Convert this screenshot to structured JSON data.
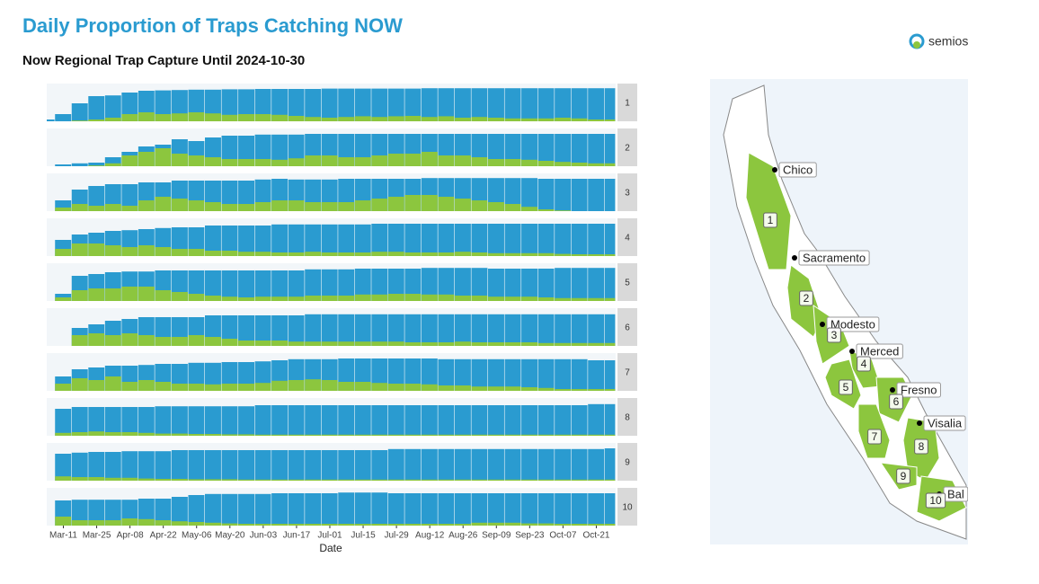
{
  "chart_data": {
    "type": "bar",
    "title": "Daily Proportion of Traps Catching NOW",
    "subtitle": "Now Regional Trap Capture Until 2024-10-30",
    "x_label": "Date",
    "ylim": [
      0,
      100
    ],
    "colors": [
      "#2a9bd0",
      "#8cc63e"
    ],
    "categories": [
      null,
      "Mar-11",
      null,
      "Mar-25",
      null,
      "Apr-08",
      null,
      "Apr-22",
      null,
      "May-06",
      null,
      "May-20",
      null,
      "Jun-03",
      null,
      "Jun-17",
      null,
      "Jul-01",
      null,
      "Jul-15",
      null,
      "Jul-29",
      null,
      "Aug-12",
      null,
      "Aug-26",
      null,
      "Sep-09",
      null,
      "Sep-23",
      null,
      "Oct-07",
      null,
      "Oct-21",
      null
    ],
    "facets": [
      {
        "label": "1",
        "series": [
          {
            "color": "#2a9bd0",
            "values": [
              5,
              20,
              50,
              70,
              72,
              80,
              85,
              86,
              87,
              88,
              88,
              89,
              89,
              90,
              90,
              90,
              90,
              91,
              91,
              91,
              91,
              91,
              91,
              92,
              92,
              92,
              92,
              92,
              92,
              92,
              92,
              92,
              92,
              92,
              92
            ]
          },
          {
            "color": "#8cc63e",
            "values": [
              0,
              0,
              2,
              5,
              10,
              20,
              25,
              20,
              22,
              25,
              22,
              18,
              20,
              20,
              18,
              15,
              12,
              10,
              12,
              14,
              12,
              14,
              15,
              12,
              14,
              10,
              12,
              10,
              8,
              8,
              8,
              10,
              8,
              5,
              5
            ]
          }
        ]
      },
      {
        "label": "2",
        "series": [
          {
            "color": "#2a9bd0",
            "values": [
              0,
              5,
              8,
              10,
              25,
              40,
              55,
              60,
              75,
              70,
              80,
              85,
              85,
              88,
              88,
              88,
              90,
              90,
              90,
              90,
              90,
              90,
              90,
              90,
              90,
              90,
              90,
              90,
              90,
              90,
              90,
              90,
              90,
              90,
              90
            ]
          },
          {
            "color": "#8cc63e",
            "values": [
              0,
              0,
              0,
              2,
              8,
              30,
              40,
              50,
              35,
              30,
              25,
              20,
              20,
              20,
              18,
              22,
              30,
              30,
              25,
              25,
              30,
              35,
              35,
              40,
              30,
              30,
              25,
              20,
              20,
              18,
              15,
              12,
              10,
              8,
              8
            ]
          }
        ]
      },
      {
        "label": "3",
        "series": [
          {
            "color": "#2a9bd0",
            "values": [
              0,
              30,
              60,
              70,
              75,
              75,
              80,
              80,
              85,
              85,
              85,
              85,
              85,
              88,
              90,
              88,
              88,
              88,
              90,
              90,
              90,
              90,
              90,
              92,
              92,
              92,
              92,
              92,
              92,
              92,
              90,
              90,
              90,
              90,
              90
            ]
          },
          {
            "color": "#8cc63e",
            "values": [
              0,
              10,
              20,
              15,
              20,
              15,
              30,
              40,
              35,
              30,
              25,
              20,
              20,
              25,
              30,
              30,
              25,
              25,
              25,
              30,
              35,
              40,
              45,
              45,
              40,
              35,
              30,
              25,
              20,
              12,
              5,
              2,
              0,
              0,
              0
            ]
          }
        ]
      },
      {
        "label": "4",
        "series": [
          {
            "color": "#2a9bd0",
            "values": [
              0,
              45,
              60,
              65,
              70,
              72,
              75,
              78,
              80,
              80,
              85,
              85,
              85,
              85,
              88,
              88,
              88,
              88,
              88,
              88,
              90,
              90,
              90,
              90,
              90,
              90,
              90,
              90,
              90,
              90,
              90,
              90,
              90,
              90,
              90
            ]
          },
          {
            "color": "#8cc63e",
            "values": [
              0,
              20,
              35,
              35,
              30,
              25,
              30,
              25,
              20,
              20,
              15,
              15,
              12,
              12,
              10,
              10,
              12,
              10,
              10,
              10,
              12,
              12,
              10,
              10,
              10,
              12,
              10,
              8,
              8,
              8,
              8,
              6,
              5,
              5,
              5
            ]
          }
        ]
      },
      {
        "label": "5",
        "series": [
          {
            "color": "#2a9bd0",
            "values": [
              0,
              20,
              70,
              75,
              80,
              82,
              82,
              85,
              85,
              85,
              85,
              85,
              85,
              85,
              85,
              85,
              88,
              88,
              88,
              90,
              90,
              90,
              90,
              92,
              92,
              92,
              92,
              90,
              90,
              90,
              90,
              92,
              92,
              92,
              92
            ]
          },
          {
            "color": "#8cc63e",
            "values": [
              0,
              10,
              30,
              35,
              35,
              40,
              40,
              30,
              25,
              20,
              15,
              12,
              10,
              12,
              12,
              12,
              15,
              15,
              15,
              18,
              18,
              20,
              20,
              18,
              18,
              15,
              15,
              12,
              12,
              12,
              10,
              8,
              8,
              8,
              8
            ]
          }
        ]
      },
      {
        "label": "6",
        "series": [
          {
            "color": "#2a9bd0",
            "values": [
              0,
              0,
              50,
              60,
              70,
              75,
              80,
              80,
              80,
              80,
              85,
              85,
              85,
              85,
              85,
              85,
              88,
              88,
              88,
              88,
              88,
              88,
              88,
              88,
              88,
              88,
              88,
              88,
              88,
              88,
              88,
              88,
              88,
              88,
              88
            ]
          },
          {
            "color": "#8cc63e",
            "values": [
              0,
              0,
              30,
              35,
              30,
              35,
              30,
              25,
              25,
              30,
              25,
              20,
              15,
              15,
              15,
              12,
              12,
              12,
              12,
              12,
              12,
              12,
              10,
              10,
              10,
              12,
              10,
              10,
              10,
              10,
              8,
              8,
              8,
              8,
              8
            ]
          }
        ]
      },
      {
        "label": "7",
        "series": [
          {
            "color": "#2a9bd0",
            "values": [
              0,
              40,
              60,
              65,
              70,
              70,
              72,
              75,
              75,
              78,
              78,
              80,
              80,
              82,
              85,
              88,
              88,
              88,
              90,
              90,
              90,
              90,
              90,
              90,
              88,
              88,
              88,
              88,
              88,
              88,
              88,
              88,
              88,
              85,
              85
            ]
          },
          {
            "color": "#8cc63e",
            "values": [
              0,
              20,
              35,
              30,
              40,
              25,
              30,
              25,
              20,
              20,
              18,
              20,
              20,
              22,
              28,
              30,
              32,
              30,
              25,
              25,
              22,
              20,
              20,
              18,
              15,
              15,
              12,
              12,
              12,
              10,
              8,
              5,
              5,
              5,
              5
            ]
          }
        ]
      },
      {
        "label": "8",
        "series": [
          {
            "color": "#2a9bd0",
            "values": [
              0,
              75,
              80,
              80,
              80,
              80,
              80,
              82,
              82,
              82,
              82,
              82,
              82,
              85,
              85,
              85,
              85,
              85,
              85,
              85,
              85,
              85,
              85,
              85,
              85,
              85,
              85,
              85,
              85,
              85,
              85,
              85,
              85,
              88,
              88
            ]
          },
          {
            "color": "#8cc63e",
            "values": [
              0,
              8,
              10,
              12,
              10,
              10,
              8,
              6,
              6,
              5,
              5,
              4,
              4,
              3,
              3,
              3,
              3,
              3,
              3,
              3,
              3,
              3,
              3,
              3,
              3,
              3,
              3,
              3,
              3,
              3,
              3,
              3,
              3,
              3,
              3
            ]
          }
        ]
      },
      {
        "label": "9",
        "series": [
          {
            "color": "#2a9bd0",
            "values": [
              0,
              75,
              78,
              80,
              80,
              82,
              82,
              82,
              85,
              85,
              85,
              85,
              85,
              85,
              85,
              85,
              85,
              85,
              85,
              85,
              85,
              88,
              88,
              88,
              88,
              88,
              88,
              88,
              88,
              88,
              88,
              88,
              88,
              88,
              90
            ]
          },
          {
            "color": "#8cc63e",
            "values": [
              0,
              12,
              10,
              10,
              8,
              8,
              6,
              5,
              5,
              4,
              4,
              4,
              3,
              3,
              3,
              3,
              3,
              3,
              3,
              3,
              3,
              3,
              3,
              3,
              3,
              3,
              3,
              3,
              3,
              3,
              3,
              3,
              3,
              3,
              3
            ]
          }
        ]
      },
      {
        "label": "10",
        "series": [
          {
            "color": "#2a9bd0",
            "values": [
              0,
              70,
              72,
              72,
              72,
              72,
              75,
              75,
              80,
              85,
              88,
              88,
              88,
              88,
              90,
              90,
              90,
              90,
              92,
              92,
              92,
              90,
              90,
              90,
              90,
              90,
              90,
              90,
              90,
              90,
              90,
              90,
              90,
              90,
              90
            ]
          },
          {
            "color": "#8cc63e",
            "values": [
              0,
              25,
              15,
              15,
              15,
              20,
              18,
              15,
              12,
              10,
              8,
              6,
              5,
              5,
              5,
              5,
              5,
              5,
              5,
              5,
              5,
              5,
              5,
              5,
              5,
              5,
              8,
              8,
              8,
              6,
              6,
              5,
              5,
              5,
              5
            ]
          }
        ]
      }
    ]
  },
  "logo": "semios",
  "map": {
    "cities": [
      "Chico",
      "Sacramento",
      "Modesto",
      "Merced",
      "Fresno",
      "Visalia",
      "Bal"
    ],
    "regions": [
      "1",
      "2",
      "3",
      "4",
      "5",
      "6",
      "7",
      "8",
      "9",
      "10"
    ]
  }
}
